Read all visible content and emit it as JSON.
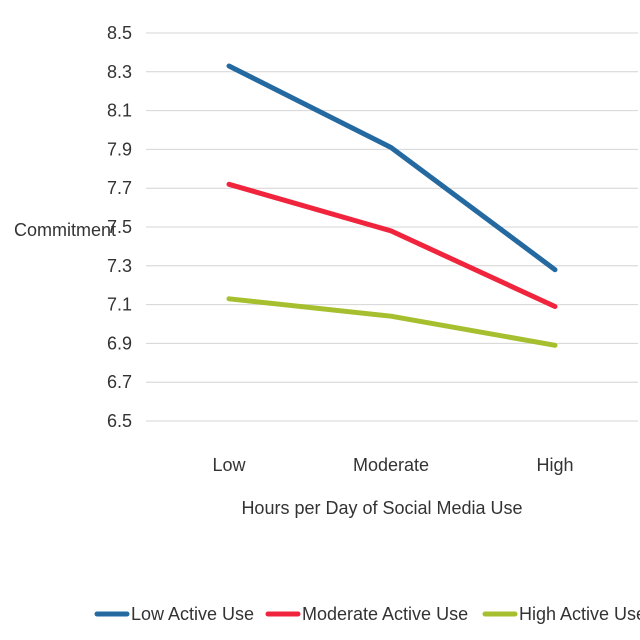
{
  "chart_data": {
    "type": "line",
    "title": "",
    "xlabel": "Hours per Day of Social Media Use",
    "ylabel": "Commitment",
    "categories": [
      "Low",
      "Moderate",
      "High"
    ],
    "ylim": [
      6.5,
      8.5
    ],
    "yticks": [
      "8.5",
      "8.3",
      "8.1",
      "7.9",
      "7.7",
      "7.5",
      "7.3",
      "7.1",
      "6.9",
      "6.7",
      "6.5"
    ],
    "grid": "horizontal",
    "legend_position": "bottom",
    "series": [
      {
        "name": "Low Active Use",
        "color": "#2469a0",
        "values": [
          8.33,
          7.91,
          7.28
        ]
      },
      {
        "name": "Moderate Active Use",
        "color": "#f0243c",
        "values": [
          7.72,
          7.48,
          7.09
        ]
      },
      {
        "name": "High Active Use",
        "color": "#a6bf2e",
        "values": [
          7.13,
          7.04,
          6.89
        ]
      }
    ]
  }
}
